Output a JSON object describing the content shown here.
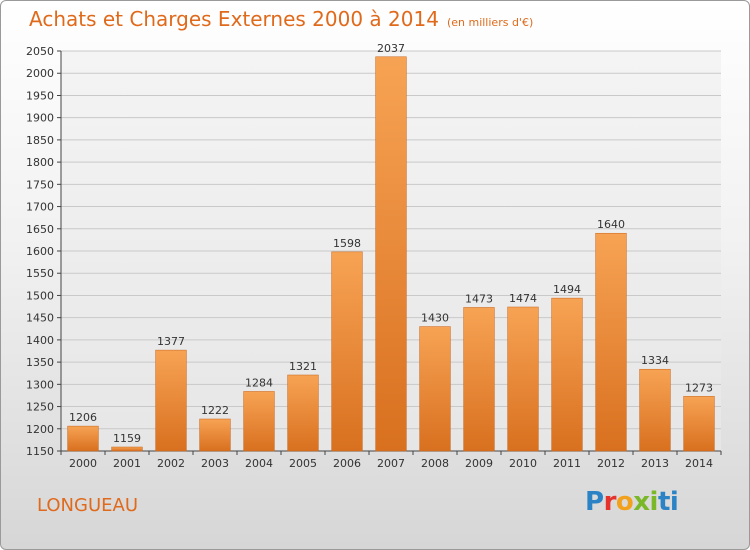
{
  "header": {
    "title": "Achats et Charges Externes 2000 à 2014",
    "subtitle": "(en milliers d'€)"
  },
  "footer": {
    "town": "LONGUEAU",
    "logo_letters": [
      "P",
      "r",
      "o",
      "x",
      "i",
      "t",
      "i"
    ]
  },
  "chart_data": {
    "type": "bar",
    "title": "Achats et Charges Externes 2000 à 2014",
    "subtitle": "(en milliers d'€)",
    "xlabel": "",
    "ylabel": "",
    "categories": [
      "2000",
      "2001",
      "2002",
      "2003",
      "2004",
      "2005",
      "2006",
      "2007",
      "2008",
      "2009",
      "2010",
      "2011",
      "2012",
      "2013",
      "2014"
    ],
    "values": [
      1206,
      1159,
      1377,
      1222,
      1284,
      1321,
      1598,
      2037,
      1430,
      1473,
      1474,
      1494,
      1640,
      1334,
      1273
    ],
    "ylim": [
      1150,
      2050
    ],
    "ytick_step": 50,
    "grid": true,
    "bar_color_top": "#f7a354",
    "bar_color_bottom": "#d8701f"
  }
}
